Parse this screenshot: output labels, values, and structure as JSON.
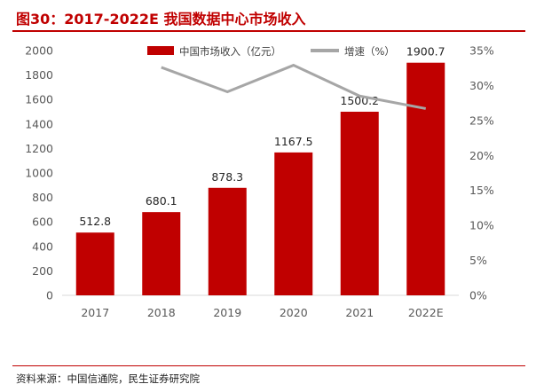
{
  "figure_title": "图30：2017-2022E  我国数据中心市场收入",
  "source_note": "资料来源：中国信通院，民生证券研究院",
  "colors": {
    "accent": "#c00000",
    "bar": "#c00000",
    "line": "#a6a6a6"
  },
  "chart_data": {
    "type": "bar",
    "title": "",
    "xlabel": "",
    "ylabel": "",
    "categories": [
      "2017",
      "2018",
      "2019",
      "2020",
      "2021",
      "2022E"
    ],
    "series": [
      {
        "name": "中国市场收入（亿元）",
        "type": "bar",
        "axis": "left",
        "values": [
          512.8,
          680.1,
          878.3,
          1167.5,
          1500.2,
          1900.7
        ],
        "data_labels": [
          "512.8",
          "680.1",
          "878.3",
          "1167.5",
          "1500.2",
          "1900.7"
        ]
      },
      {
        "name": "增速（%）",
        "type": "line",
        "axis": "right",
        "values": [
          null,
          32.6,
          29.1,
          32.9,
          28.5,
          26.7
        ]
      }
    ],
    "ylim": [
      0,
      2000
    ],
    "yticks": [
      "0",
      "200",
      "400",
      "600",
      "800",
      "1000",
      "1200",
      "1400",
      "1600",
      "1800",
      "2000"
    ],
    "y2lim": [
      0,
      35
    ],
    "y2ticks": [
      "0%",
      "5%",
      "10%",
      "15%",
      "20%",
      "25%",
      "30%",
      "35%"
    ],
    "legend_position": "top",
    "grid": false
  }
}
